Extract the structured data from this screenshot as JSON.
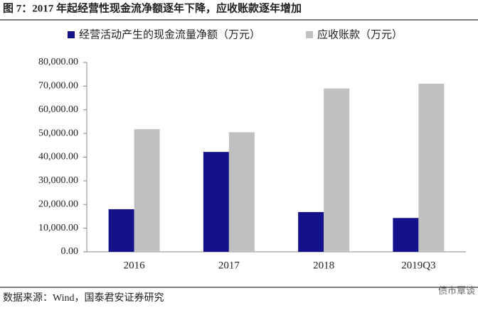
{
  "chart_data": {
    "type": "bar",
    "title": "图 7：2017 年起经营性现金流净额逐年下降，应收账款逐年增加",
    "categories": [
      "2016",
      "2017",
      "2018",
      "2019Q3"
    ],
    "series": [
      {
        "name": "经营活动产生的现金流量净额（万元）",
        "color": "#13128a",
        "values": [
          18000,
          42200,
          16800,
          14300
        ]
      },
      {
        "name": "应收账款（万元）",
        "color": "#c0c0c0",
        "values": [
          51800,
          50500,
          69000,
          71000
        ]
      }
    ],
    "ylim": [
      0,
      80000
    ],
    "yticks": [
      {
        "value": 0,
        "label": "0.00"
      },
      {
        "value": 10000,
        "label": "10,000.00"
      },
      {
        "value": 20000,
        "label": "20,000.00"
      },
      {
        "value": 30000,
        "label": "30,000.00"
      },
      {
        "value": 40000,
        "label": "40,000.00"
      },
      {
        "value": 50000,
        "label": "50,000.00"
      },
      {
        "value": 60000,
        "label": "60,000.00"
      },
      {
        "value": 70000,
        "label": "70,000.00"
      },
      {
        "value": 80000,
        "label": "80,000.00"
      }
    ],
    "legend": "top",
    "source": "数据来源：Wind，国泰君安证券研究",
    "watermark": "债市覃谈"
  }
}
